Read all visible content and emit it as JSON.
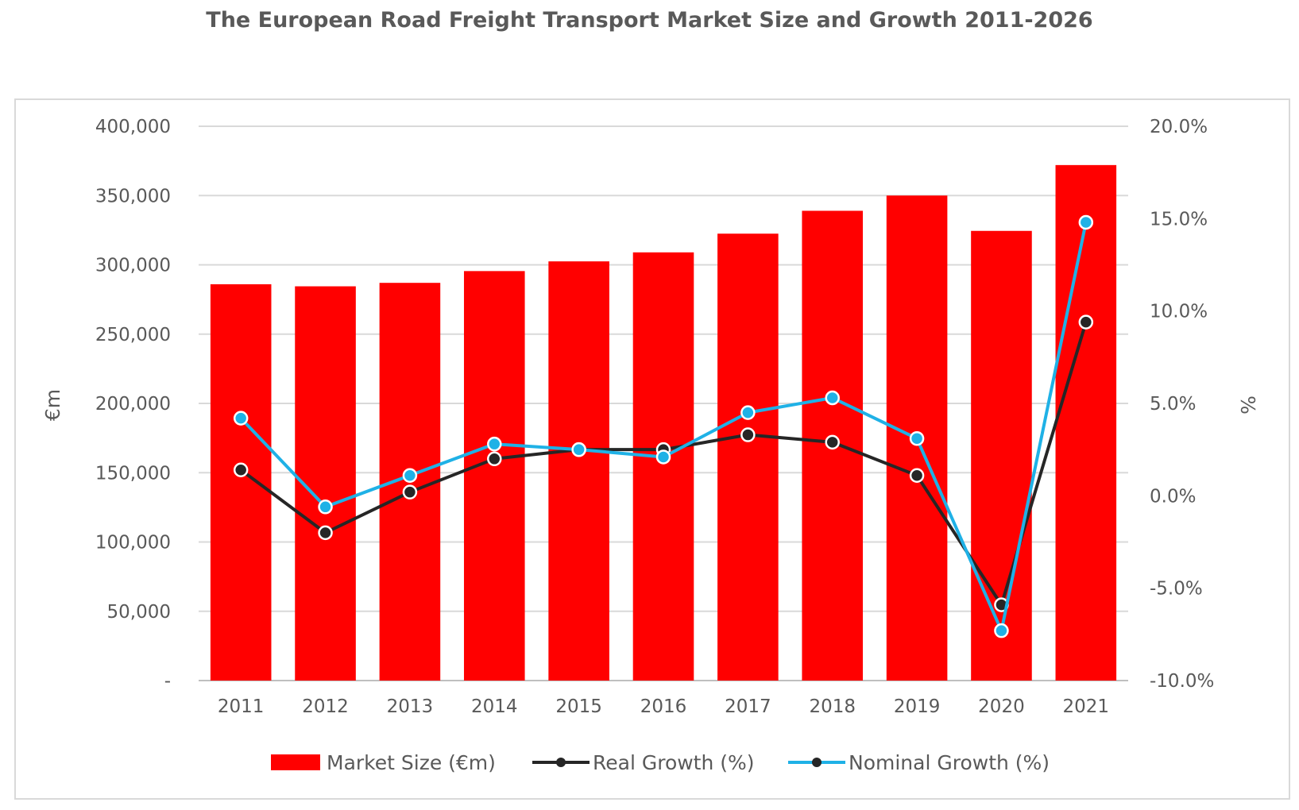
{
  "chart_data": {
    "type": "bar",
    "title": "The European Road Freight Transport Market Size and Growth 2011-2026",
    "categories": [
      "2011",
      "2012",
      "2013",
      "2014",
      "2015",
      "2016",
      "2017",
      "2018",
      "2019",
      "2020",
      "2021"
    ],
    "ylabel": "€m",
    "y2label": "%",
    "ylim": [
      0,
      400000
    ],
    "y2lim": [
      -10,
      20
    ],
    "yticks": [
      "-",
      "50,000",
      "100,000",
      "150,000",
      "200,000",
      "250,000",
      "300,000",
      "350,000",
      "400,000"
    ],
    "y2ticks": [
      "-10.0%",
      "-5.0%",
      "0.0%",
      "5.0%",
      "10.0%",
      "15.0%",
      "20.0%"
    ],
    "grid": true,
    "legend_position": "bottom",
    "series": [
      {
        "name": "Market Size (€m)",
        "type": "bar",
        "axis": "left",
        "color": "#ff0000",
        "values": [
          286000,
          284500,
          287000,
          295500,
          302500,
          309000,
          322500,
          339000,
          350000,
          324500,
          372000
        ]
      },
      {
        "name": "Real Growth (%)",
        "type": "line",
        "axis": "right",
        "color": "#262626",
        "values": [
          1.4,
          -2.0,
          0.2,
          2.0,
          2.5,
          2.5,
          3.3,
          2.9,
          1.1,
          -5.9,
          9.4
        ]
      },
      {
        "name": "Nominal Growth (%)",
        "type": "line",
        "axis": "right",
        "color": "#1fb1e6",
        "values": [
          4.2,
          -0.6,
          1.1,
          2.8,
          2.5,
          2.1,
          4.5,
          5.3,
          3.1,
          -7.3,
          14.8
        ]
      }
    ]
  }
}
